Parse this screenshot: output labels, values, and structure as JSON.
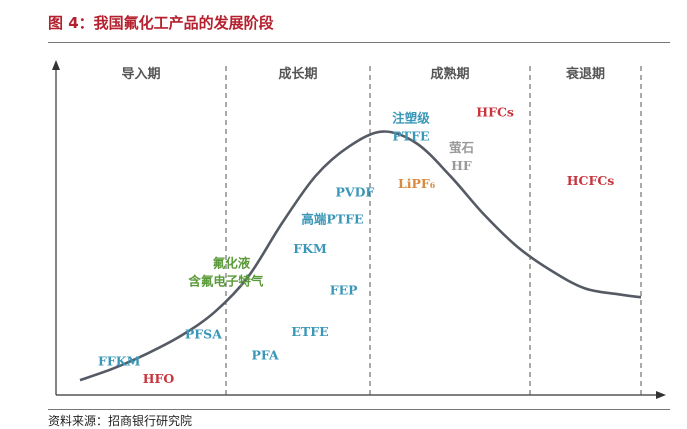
{
  "figure_title": "图 4：我国氟化工产品的发展阶段",
  "source": "资料来源：招商银行研究院",
  "chart_data": {
    "type": "line",
    "title": "图 4：我国氟化工产品的发展阶段",
    "xlabel": "",
    "ylabel": "",
    "stages": [
      "导入期",
      "成长期",
      "成熟期",
      "衰退期"
    ],
    "grid": false,
    "legend": "none",
    "series": [
      {
        "x": [
          0,
          6,
          12,
          18,
          24,
          30,
          36,
          42,
          48,
          54,
          60,
          66,
          72,
          78,
          84,
          90,
          96,
          100
        ],
        "values": [
          4,
          8,
          13,
          19,
          27,
          39,
          57,
          73,
          83,
          88,
          84,
          73,
          60,
          49,
          41,
          35,
          33,
          32
        ]
      }
    ],
    "colors": {
      "curve": "#555a65",
      "teal": "#3a97b8",
      "red": "#c8343c",
      "green": "#5b9a3a",
      "orange": "#d98a3e",
      "gray": "#9a9a9a"
    },
    "products": [
      {
        "text": "FFKM",
        "x": 7,
        "y": 9,
        "color": "teal"
      },
      {
        "text": "HFO",
        "x": 14,
        "y": 3,
        "color": "red"
      },
      {
        "text": "PFSA",
        "x": 22,
        "y": 18,
        "color": "teal"
      },
      {
        "text": "PFA",
        "x": 33,
        "y": 11,
        "color": "teal"
      },
      {
        "text": "氟化液",
        "x": 27,
        "y": 42,
        "color": "green"
      },
      {
        "text": "含氟电子特气",
        "x": 26,
        "y": 36,
        "color": "green"
      },
      {
        "text": "ETFE",
        "x": 41,
        "y": 19,
        "color": "teal"
      },
      {
        "text": "FEP",
        "x": 47,
        "y": 33,
        "color": "teal"
      },
      {
        "text": "FKM",
        "x": 41,
        "y": 47,
        "color": "teal"
      },
      {
        "text": "高端PTFE",
        "x": 45,
        "y": 57,
        "color": "teal"
      },
      {
        "text": "PVDF",
        "x": 49,
        "y": 66,
        "color": "teal"
      },
      {
        "text": "注塑级",
        "x": 59,
        "y": 91,
        "color": "teal"
      },
      {
        "text": "PTFE",
        "x": 59,
        "y": 85,
        "color": "teal"
      },
      {
        "text": "HFCs",
        "x": 74,
        "y": 93,
        "color": "red"
      },
      {
        "text": "萤石",
        "x": 68,
        "y": 81,
        "color": "gray"
      },
      {
        "text": "HF",
        "x": 68,
        "y": 75,
        "color": "gray"
      },
      {
        "text": "LiPF₆",
        "x": 60,
        "y": 69,
        "color": "orange"
      },
      {
        "text": "HCFCs",
        "x": 91,
        "y": 70,
        "color": "red"
      }
    ]
  }
}
